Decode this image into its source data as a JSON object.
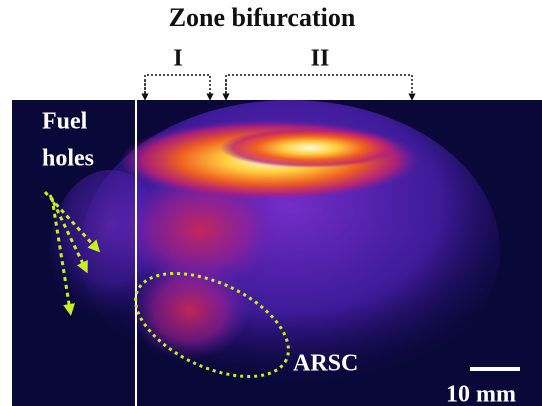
{
  "title": "Zone bifurcation",
  "zones": [
    {
      "label": "I"
    },
    {
      "label": "II"
    }
  ],
  "annotations": {
    "fuel_holes": [
      "Fuel",
      "holes"
    ],
    "arsc": "ARSC",
    "scale_bar": "10 mm"
  }
}
